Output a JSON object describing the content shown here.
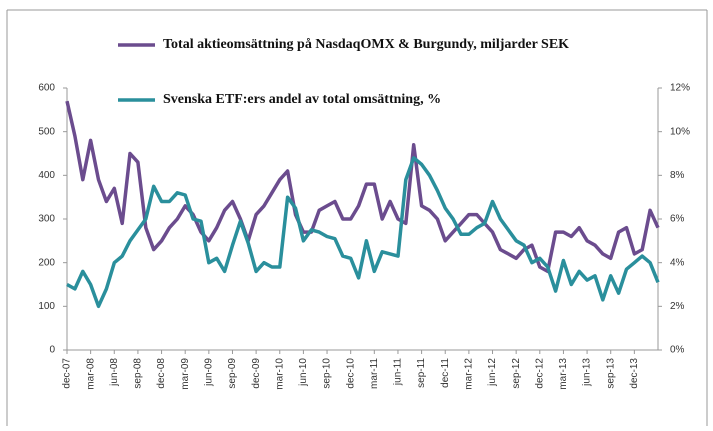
{
  "chart_data": {
    "type": "line",
    "categories": [
      "dec-07",
      null,
      null,
      "mar-08",
      null,
      null,
      "jun-08",
      null,
      null,
      "sep-08",
      null,
      null,
      "dec-08",
      null,
      null,
      "mar-09",
      null,
      null,
      "jun-09",
      null,
      null,
      "sep-09",
      null,
      null,
      "dec-09",
      null,
      null,
      "mar-10",
      null,
      null,
      "jun-10",
      null,
      null,
      "sep-10",
      null,
      null,
      "dec-10",
      null,
      null,
      "mar-11",
      null,
      null,
      "jun-11",
      null,
      null,
      "sep-11",
      null,
      null,
      "dec-11",
      null,
      null,
      "mar-12",
      null,
      null,
      "jun-12",
      null,
      null,
      "sep-12",
      null,
      null,
      "dec-12",
      null,
      null,
      "mar-13",
      null,
      null,
      "jun-13",
      null,
      null,
      "sep-13",
      null,
      null,
      "dec-13",
      null,
      null,
      null
    ],
    "series": [
      {
        "name": "Total aktieomsättning på NasdaqOMX & Burgundy, miljarder SEK",
        "color": "#6b4c8e",
        "axis": "y",
        "values": [
          570,
          490,
          390,
          480,
          390,
          340,
          370,
          290,
          450,
          430,
          280,
          230,
          250,
          280,
          300,
          330,
          310,
          270,
          250,
          280,
          320,
          340,
          300,
          250,
          310,
          330,
          360,
          390,
          410,
          310,
          270,
          270,
          320,
          330,
          340,
          300,
          300,
          330,
          380,
          380,
          300,
          340,
          300,
          290,
          470,
          330,
          320,
          300,
          250,
          270,
          290,
          310,
          310,
          290,
          270,
          230,
          220,
          210,
          230,
          240,
          190,
          180,
          270,
          270,
          260,
          280,
          250,
          240,
          220,
          210,
          270,
          280,
          220,
          230,
          320,
          280
        ]
      },
      {
        "name": "Svenska ETF:ers andel av total omsättning, %",
        "color": "#2a8f9c",
        "axis": "y2",
        "values": [
          3.0,
          2.8,
          3.6,
          3.0,
          2.0,
          2.8,
          4.0,
          4.3,
          5.0,
          5.5,
          6.0,
          7.5,
          6.8,
          6.8,
          7.2,
          7.1,
          6.0,
          5.9,
          4.0,
          4.2,
          3.6,
          4.8,
          5.9,
          4.9,
          3.6,
          4.0,
          3.8,
          3.8,
          7.0,
          6.5,
          5.0,
          5.5,
          5.4,
          5.2,
          5.1,
          4.3,
          4.2,
          3.3,
          5.0,
          3.6,
          4.5,
          4.4,
          4.3,
          7.8,
          8.8,
          8.5,
          8.0,
          7.3,
          6.5,
          6.0,
          5.3,
          5.3,
          5.6,
          5.8,
          6.8,
          6.0,
          5.5,
          5.0,
          4.8,
          4.0,
          4.2,
          3.8,
          2.7,
          4.1,
          3.0,
          3.6,
          3.2,
          3.4,
          2.3,
          3.4,
          2.6,
          3.7,
          4.0,
          4.3,
          4.0,
          3.1
        ]
      }
    ],
    "ylim": [
      0,
      600
    ],
    "yticks": [
      0,
      100,
      200,
      300,
      400,
      500,
      600
    ],
    "y2lim": [
      0,
      12
    ],
    "y2ticks": [
      {
        "value": 0,
        "label": "0%"
      },
      {
        "value": 2,
        "label": "2%"
      },
      {
        "value": 4,
        "label": "4%"
      },
      {
        "value": 6,
        "label": "6%"
      },
      {
        "value": 8,
        "label": "8%"
      },
      {
        "value": 10,
        "label": "10%"
      },
      {
        "value": 12,
        "label": "12%"
      }
    ],
    "grid": false,
    "legend": "top"
  }
}
